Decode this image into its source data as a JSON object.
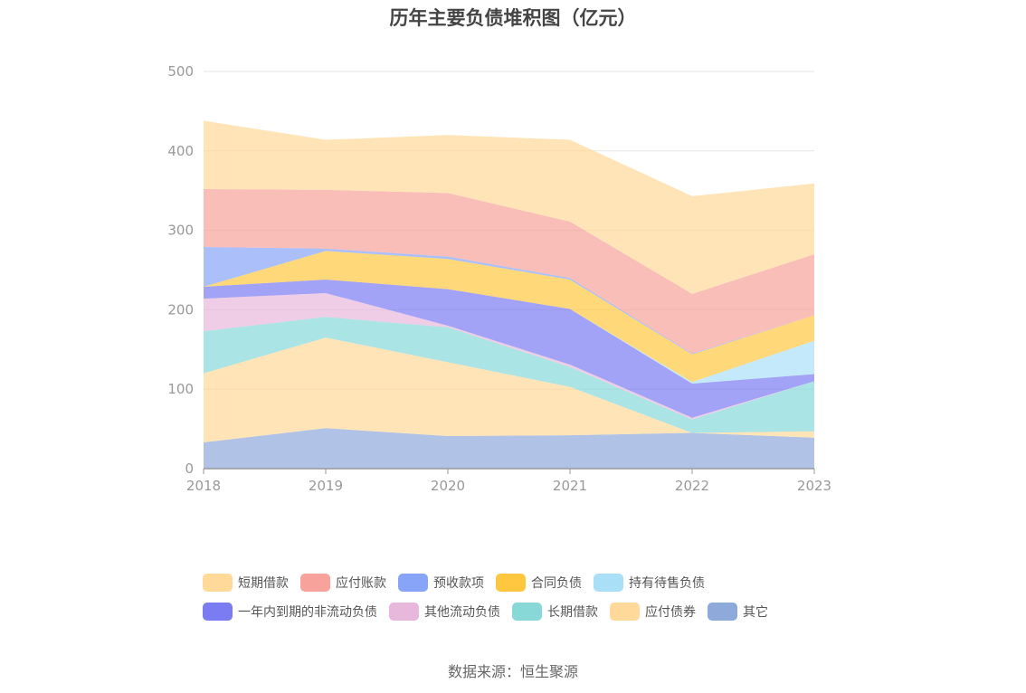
{
  "chart_data": {
    "type": "area",
    "stacked": true,
    "title": "历年主要负债堆积图（亿元）",
    "x": [
      "2018",
      "2019",
      "2020",
      "2021",
      "2022",
      "2023"
    ],
    "ylim": [
      0,
      500
    ],
    "yticks": [
      0,
      100,
      200,
      300,
      400,
      500
    ],
    "grid": true,
    "legend_position": "bottom",
    "series": [
      {
        "name": "其它",
        "color": "#8eaadb",
        "values": [
          33,
          51,
          41,
          42,
          45,
          39
        ]
      },
      {
        "name": "应付债券",
        "color": "#ffd999",
        "values": [
          87,
          114,
          93,
          61,
          0,
          8
        ]
      },
      {
        "name": "长期借款",
        "color": "#88d8d8",
        "values": [
          53,
          26,
          44,
          25,
          17,
          63
        ]
      },
      {
        "name": "其他流动负债",
        "color": "#e8b8dc",
        "values": [
          41,
          30,
          2,
          3,
          2,
          0
        ]
      },
      {
        "name": "一年内到期的非流动负债",
        "color": "#7b7bf2",
        "values": [
          15,
          17,
          46,
          70,
          43,
          9
        ]
      },
      {
        "name": "持有待售负债",
        "color": "#a9e0f8",
        "values": [
          0,
          0,
          0,
          0,
          2,
          42
        ]
      },
      {
        "name": "合同负债",
        "color": "#ffc740",
        "values": [
          0,
          36,
          38,
          37,
          35,
          32
        ]
      },
      {
        "name": "预收款项",
        "color": "#88a4f8",
        "values": [
          50,
          3,
          3,
          2,
          1,
          0
        ]
      },
      {
        "name": "应付账款",
        "color": "#f7a29a",
        "values": [
          73,
          74,
          80,
          71,
          75,
          77
        ]
      },
      {
        "name": "短期借款",
        "color": "#ffd999",
        "values": [
          86,
          63,
          73,
          103,
          123,
          89
        ]
      }
    ]
  },
  "legend_rows": [
    [
      {
        "label": "短期借款",
        "color": "#ffd999"
      },
      {
        "label": "应付账款",
        "color": "#f7a29a"
      },
      {
        "label": "预收款项",
        "color": "#88a4f8"
      },
      {
        "label": "合同负债",
        "color": "#ffc740"
      },
      {
        "label": "持有待售负债",
        "color": "#a9e0f8"
      }
    ],
    [
      {
        "label": "一年内到期的非流动负债",
        "color": "#7b7bf2"
      },
      {
        "label": "其他流动负债",
        "color": "#e8b8dc"
      },
      {
        "label": "长期借款",
        "color": "#88d8d8"
      },
      {
        "label": "应付债券",
        "color": "#ffd999"
      },
      {
        "label": "其它",
        "color": "#8eaadb"
      }
    ]
  ],
  "source": "数据来源：恒生聚源"
}
